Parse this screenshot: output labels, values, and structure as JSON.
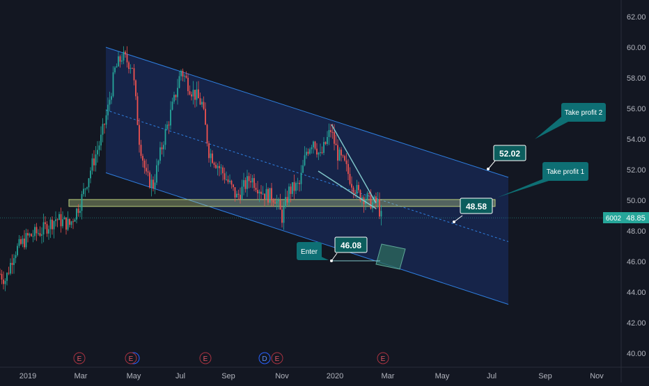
{
  "chart_data": {
    "type": "candlestick",
    "x_axis": {
      "ticks": [
        "2019",
        "Mar",
        "May",
        "Jul",
        "Sep",
        "Nov",
        "2020",
        "Mar",
        "May",
        "Jul",
        "Sep",
        "Nov"
      ]
    },
    "y_axis": {
      "range": [
        39.5,
        63.0
      ],
      "ticks": [
        "40.00",
        "42.00",
        "44.00",
        "46.00",
        "48.00",
        "50.00",
        "52.00",
        "54.00",
        "56.00",
        "58.00",
        "60.00",
        "62.00"
      ],
      "position": "right"
    },
    "last_price": {
      "symbol": "6002",
      "value": "48.85"
    },
    "annotations": [
      {
        "name": "take-profit-2",
        "text": "Take profit 2"
      },
      {
        "name": "take-profit-1",
        "text": "Take profit 1"
      },
      {
        "name": "enter",
        "text": "Enter"
      },
      {
        "name": "target-52",
        "text": "52.02"
      },
      {
        "name": "target-48",
        "text": "48.58"
      },
      {
        "name": "entry-46",
        "text": "46.08"
      }
    ],
    "event_markers": [
      "E",
      "E",
      "",
      "E",
      "D",
      "E",
      "E"
    ],
    "channel": {
      "top_start": 60.0,
      "top_end": 51.5,
      "bottom_start": 51.8,
      "bottom_end": 43.2,
      "mid_start": 55.9,
      "mid_end": 47.3
    },
    "support_zone": {
      "low": 49.6,
      "high": 50.05
    },
    "grid": false,
    "colors": {
      "up": "#26a69a",
      "down": "#ef5350",
      "channel": "#2962ff",
      "background": "#131722",
      "label_fill": "#0c5d5d"
    }
  }
}
